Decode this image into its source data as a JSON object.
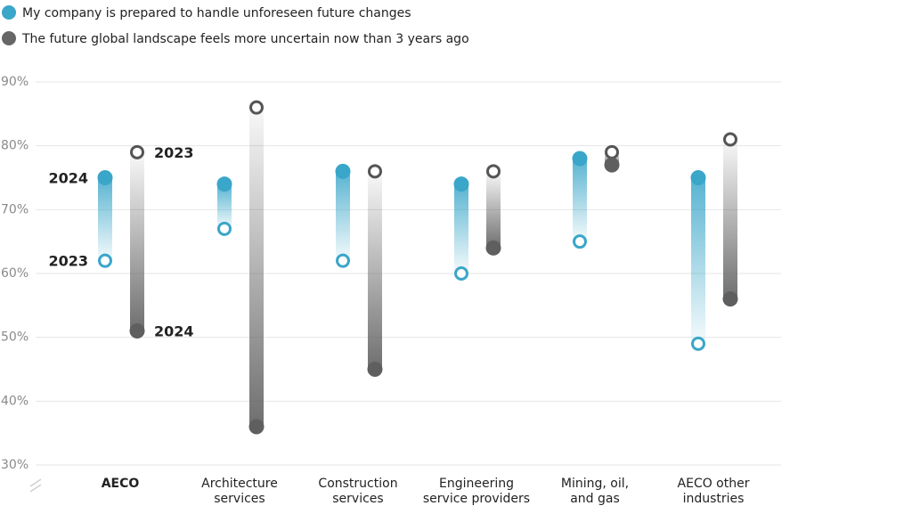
{
  "chart_data": {
    "type": "dumbbell",
    "legend": [
      {
        "label": "My company is prepared to handle unforeseen future changes",
        "color": "#3aa6c9",
        "placement": "top-left"
      },
      {
        "label": "The future global landscape feels more uncertain now than 3 years ago",
        "color": "#666666",
        "placement": "top-left"
      }
    ],
    "ylim": [
      30,
      90
    ],
    "yticks": [
      30,
      40,
      50,
      60,
      70,
      80,
      90
    ],
    "ytick_labels": [
      "30%",
      "40%",
      "50%",
      "60%",
      "70%",
      "80%",
      "90%"
    ],
    "grid": true,
    "categories": [
      {
        "label": [
          "AECO"
        ],
        "bold": true
      },
      {
        "label": [
          "Architecture",
          "services"
        ],
        "bold": false
      },
      {
        "label": [
          "Construction",
          "services"
        ],
        "bold": false
      },
      {
        "label": [
          "Engineering",
          "service providers"
        ],
        "bold": false
      },
      {
        "label": [
          "Mining, oil,",
          "and gas"
        ],
        "bold": false
      },
      {
        "label": [
          "AECO other",
          "industries"
        ],
        "bold": false
      }
    ],
    "series": [
      {
        "name": "My company is prepared to handle unforeseen future changes",
        "color": "#3aa6c9",
        "y2023": [
          62,
          67,
          62,
          60,
          65,
          49
        ],
        "y2024": [
          75,
          74,
          76,
          74,
          78,
          75
        ]
      },
      {
        "name": "The future global landscape feels more uncertain now than 3 years ago",
        "color": "#666666",
        "y2023": [
          79,
          86,
          76,
          76,
          79,
          81
        ],
        "y2024": [
          51,
          36,
          45,
          64,
          77,
          56
        ]
      }
    ],
    "annotations": [
      {
        "text": "2024",
        "category": 0,
        "series": 0,
        "year": "2024",
        "side": "left"
      },
      {
        "text": "2023",
        "category": 0,
        "series": 0,
        "year": "2023",
        "side": "left"
      },
      {
        "text": "2023",
        "category": 0,
        "series": 1,
        "year": "2023",
        "side": "right"
      },
      {
        "text": "2024",
        "category": 0,
        "series": 1,
        "year": "2024",
        "side": "right"
      }
    ]
  }
}
